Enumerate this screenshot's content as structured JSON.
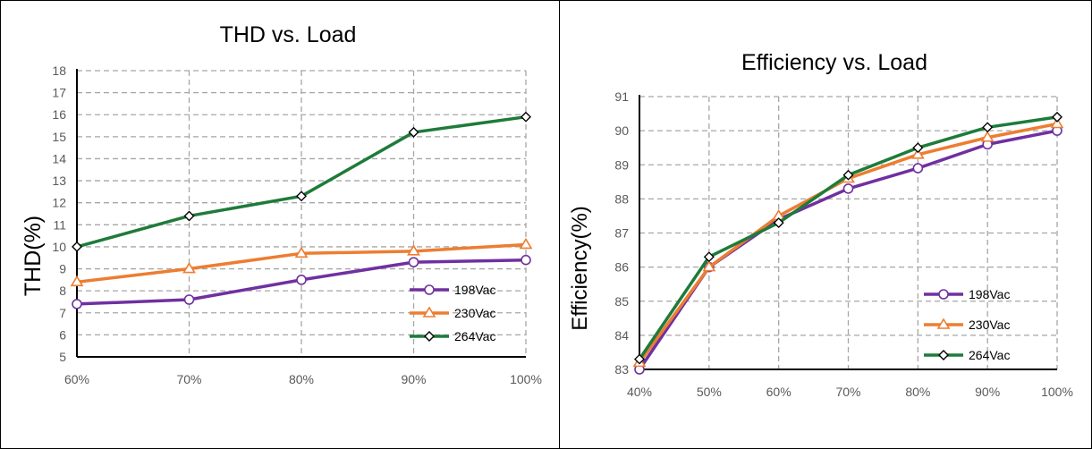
{
  "chart_data": [
    {
      "type": "line",
      "title": "THD vs. Load",
      "xlabel": "",
      "ylabel": "THD(%)",
      "categories": [
        "60%",
        "70%",
        "80%",
        "90%",
        "100%"
      ],
      "ylim": [
        5,
        18
      ],
      "yticks": [
        5,
        6,
        7,
        8,
        9,
        10,
        11,
        12,
        13,
        14,
        15,
        16,
        17,
        18
      ],
      "grid": true,
      "legend": "bottom-right",
      "series": [
        {
          "name": "198Vac",
          "color": "#7030a0",
          "marker": "circle",
          "values": [
            7.4,
            7.6,
            8.5,
            9.3,
            9.4
          ]
        },
        {
          "name": "230Vac",
          "color": "#ed7d31",
          "marker": "triangle",
          "values": [
            8.4,
            9.0,
            9.7,
            9.8,
            10.1
          ]
        },
        {
          "name": "264Vac",
          "color": "#1e7b3a",
          "marker": "diamond",
          "values": [
            10.0,
            11.4,
            12.3,
            15.2,
            15.9
          ]
        }
      ]
    },
    {
      "type": "line",
      "title": "Efficiency vs. Load",
      "xlabel": "",
      "ylabel": "Efficiency(%)",
      "categories": [
        "40%",
        "50%",
        "60%",
        "70%",
        "80%",
        "90%",
        "100%"
      ],
      "ylim": [
        83,
        91
      ],
      "yticks": [
        83,
        84,
        85,
        86,
        87,
        88,
        89,
        90,
        91
      ],
      "grid": true,
      "legend": "bottom-right",
      "series": [
        {
          "name": "198Vac",
          "color": "#7030a0",
          "marker": "circle",
          "values": [
            83.0,
            86.0,
            87.4,
            88.3,
            88.9,
            89.6,
            90.0
          ]
        },
        {
          "name": "230Vac",
          "color": "#ed7d31",
          "marker": "triangle",
          "values": [
            83.2,
            86.0,
            87.5,
            88.6,
            89.3,
            89.8,
            90.2
          ]
        },
        {
          "name": "264Vac",
          "color": "#1e7b3a",
          "marker": "diamond",
          "values": [
            83.3,
            86.3,
            87.3,
            88.7,
            89.5,
            90.1,
            90.4
          ]
        }
      ]
    }
  ]
}
